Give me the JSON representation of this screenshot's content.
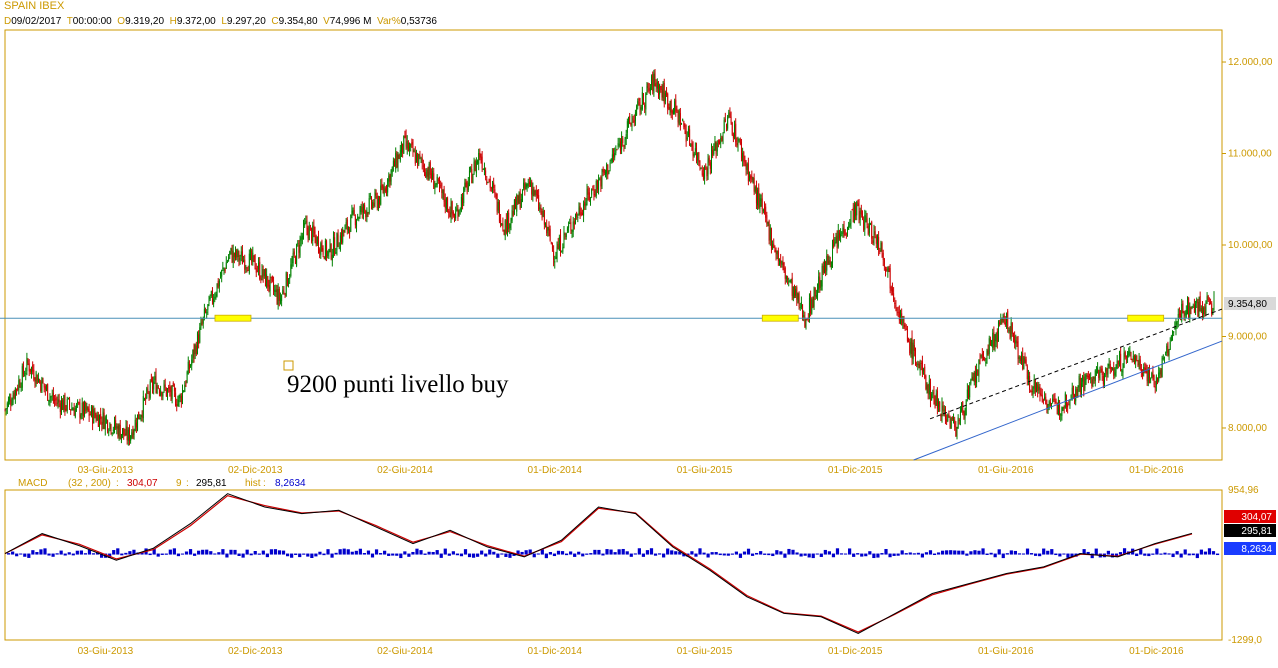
{
  "header": {
    "symbol": "SPAIN IBEX",
    "fields": [
      {
        "key": "D",
        "value": "09/02/2017"
      },
      {
        "key": "T",
        "value": "00:00:00"
      },
      {
        "key": "O",
        "value": "9.319,20"
      },
      {
        "key": "H",
        "value": "9.372,00"
      },
      {
        "key": "L",
        "value": "9.297,20"
      },
      {
        "key": "C",
        "value": "9.354,80"
      },
      {
        "key": "V",
        "value": "74,996 M"
      },
      {
        "key": "Var%",
        "value": "0,53736"
      }
    ]
  },
  "annotation": "9200 punti livello buy",
  "colors": {
    "up": "#008000",
    "down": "#cc0000",
    "grid": "#cc9900",
    "support": "#4a90b8",
    "trend": "#3366cc",
    "macd_hist": "#0000cc",
    "signal": "#cc0000",
    "highlight": "#ffff00"
  },
  "chart_data": [
    {
      "type": "line",
      "subtype": "candlestick",
      "title": "SPAIN IBEX",
      "x_tick_labels": [
        "03-Giu-2013",
        "02-Dic-2013",
        "02-Giu-2014",
        "01-Dic-2014",
        "01-Giu-2015",
        "01-Dic-2015",
        "01-Giu-2016",
        "01-Dic-2016"
      ],
      "y_tick_labels": [
        "8.000,00",
        "9.000,00",
        "10.000,00",
        "11.000,00",
        "12.000,00"
      ],
      "y_ticks": [
        8000,
        9000,
        10000,
        11000,
        12000
      ],
      "ylim": [
        7650,
        12350
      ],
      "last_price_label": "9.354,80",
      "horizontal_line": 9200,
      "series": [
        {
          "x": [
            "2013-02-01",
            "2013-03-01",
            "2013-04-01",
            "2013-05-01",
            "2013-06-01",
            "2013-07-01",
            "2013-08-01",
            "2013-09-01",
            "2013-10-01",
            "2013-11-01",
            "2013-12-01",
            "2014-01-01",
            "2014-02-01",
            "2014-03-01",
            "2014-04-01",
            "2014-05-01",
            "2014-06-01",
            "2014-07-01",
            "2014-08-01",
            "2014-09-01",
            "2014-10-01",
            "2014-11-01",
            "2014-12-01",
            "2015-01-01",
            "2015-02-01",
            "2015-03-01",
            "2015-04-01",
            "2015-05-01",
            "2015-06-01",
            "2015-07-01",
            "2015-08-01",
            "2015-09-01",
            "2015-10-01",
            "2015-11-01",
            "2015-12-01",
            "2016-01-01",
            "2016-02-01",
            "2016-03-01",
            "2016-04-01",
            "2016-05-01",
            "2016-06-01",
            "2016-07-01",
            "2016-08-01",
            "2016-09-01",
            "2016-10-01",
            "2016-11-01",
            "2016-12-01",
            "2017-01-01",
            "2017-02-09"
          ],
          "close": [
            8200,
            8700,
            8300,
            8200,
            8100,
            7900,
            8500,
            8300,
            9200,
            9900,
            9800,
            9400,
            10200,
            9900,
            10300,
            10500,
            11100,
            10800,
            10300,
            11000,
            10200,
            10700,
            9900,
            10400,
            10800,
            11300,
            11800,
            11400,
            10800,
            11400,
            10600,
            9800,
            9200,
            9900,
            10400,
            10000,
            9000,
            8400,
            8000,
            8700,
            9200,
            8500,
            8200,
            8500,
            8600,
            8800,
            8500,
            9300,
            9355
          ]
        }
      ]
    },
    {
      "type": "line",
      "title": "MACD",
      "params_label": "(32 , 200)",
      "macd_value_label": "304,07",
      "signal_period_label": "9",
      "signal_value_label": "295,81",
      "hist_label": "hist",
      "hist_value_label": "8,2634",
      "y_tick_labels": [
        "954,96",
        "-1299,0"
      ],
      "ylim": [
        -1299,
        954.96
      ],
      "series": [
        {
          "name": "MACD",
          "values": [
            0,
            300,
            120,
            -100,
            80,
            450,
            900,
            700,
            600,
            650,
            400,
            150,
            350,
            100,
            -50,
            200,
            700,
            600,
            100,
            -250,
            -650,
            -900,
            -950,
            -1200,
            -900,
            -600,
            -450,
            -300,
            -200,
            0,
            -50,
            150,
            304.07
          ]
        },
        {
          "name": "Signal",
          "values": [
            0,
            280,
            140,
            -80,
            60,
            420,
            870,
            720,
            610,
            640,
            420,
            170,
            330,
            120,
            -40,
            180,
            680,
            610,
            120,
            -230,
            -630,
            -890,
            -940,
            -1180,
            -910,
            -620,
            -460,
            -310,
            -210,
            -10,
            -40,
            140,
            295.81
          ]
        }
      ]
    }
  ]
}
